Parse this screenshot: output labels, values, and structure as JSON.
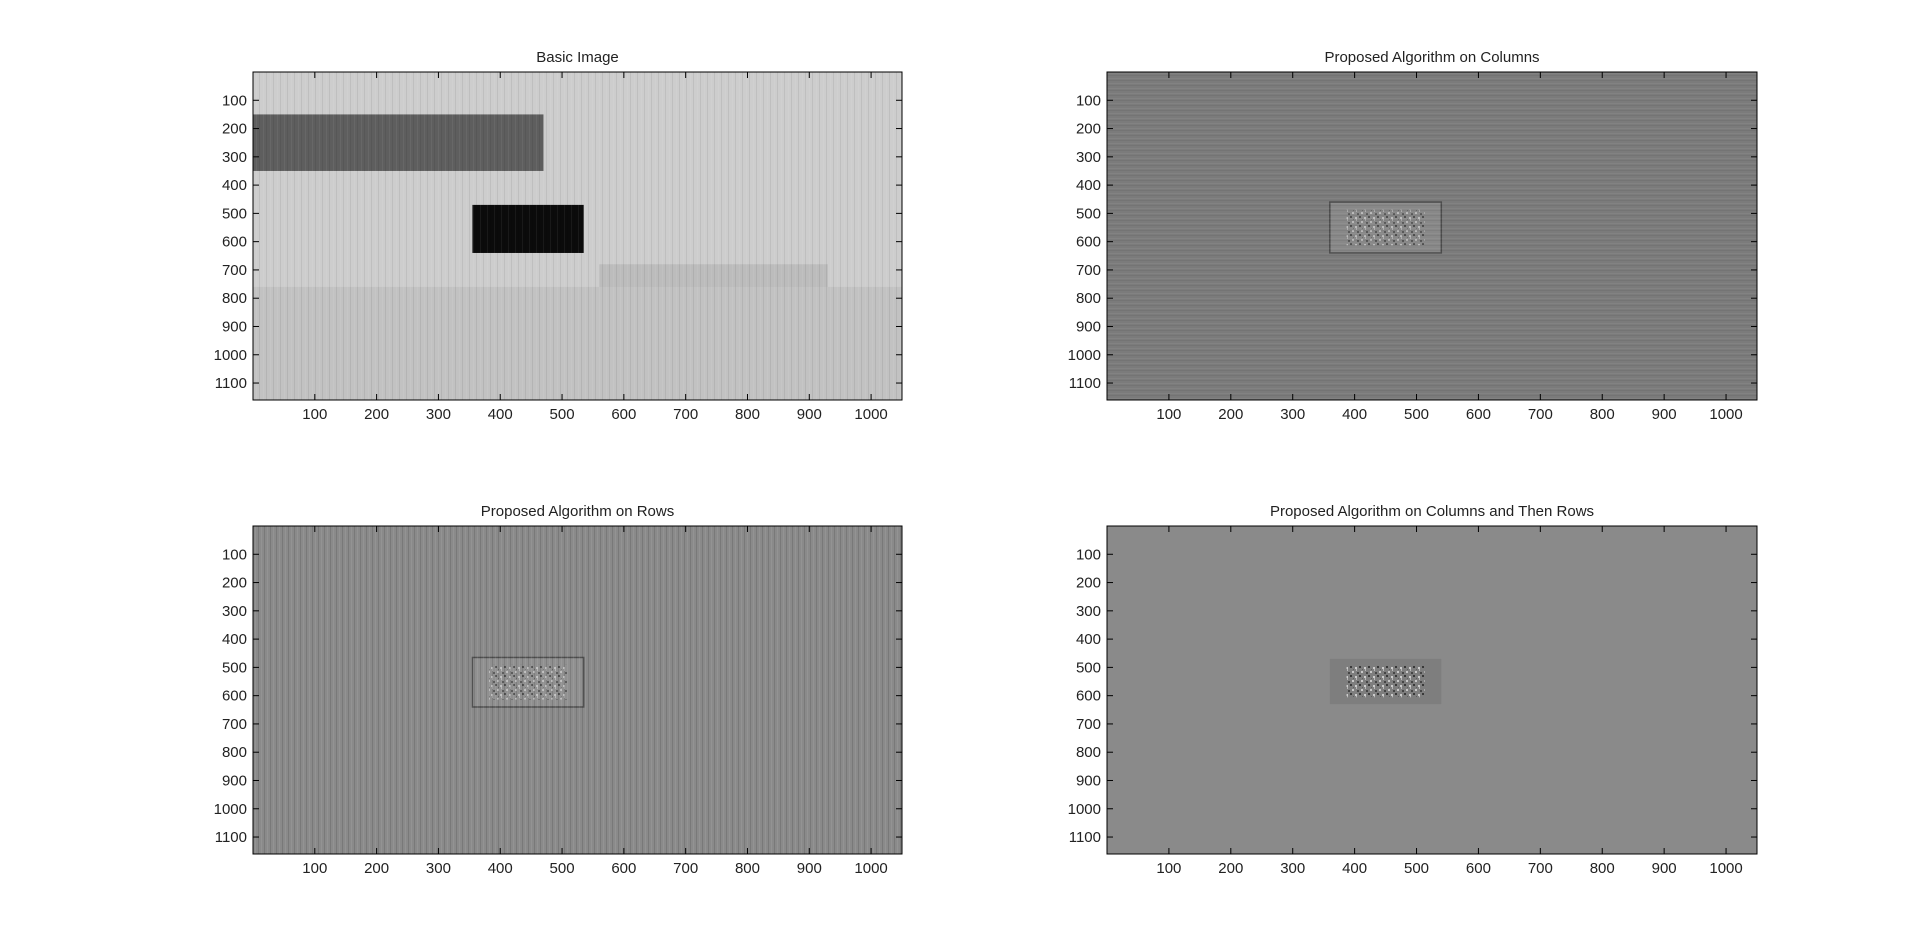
{
  "chart_data": [
    {
      "type": "heatmap",
      "title": "Basic Image",
      "xlabel": "",
      "ylabel": "",
      "xlim": [
        0,
        1050
      ],
      "ylim": [
        1160,
        0
      ],
      "x_ticks": [
        100,
        200,
        300,
        400,
        500,
        600,
        700,
        800,
        900,
        1000
      ],
      "y_ticks": [
        100,
        200,
        300,
        400,
        500,
        600,
        700,
        800,
        900,
        1000,
        1100
      ],
      "colormap": "gray",
      "background_gray": "#cdcdcd",
      "features": [
        {
          "name": "dark band",
          "x": [
            0,
            470
          ],
          "y": [
            150,
            350
          ],
          "gray": "#5e5e5e"
        },
        {
          "name": "black block",
          "x": [
            355,
            535
          ],
          "y": [
            470,
            640
          ],
          "gray": "#0b0b0b"
        },
        {
          "name": "gray rectangle",
          "x": [
            560,
            930
          ],
          "y": [
            680,
            940
          ],
          "gray": "#bcbcbc"
        },
        {
          "name": "lower band",
          "x": [
            0,
            1050
          ],
          "y": [
            760,
            1160
          ],
          "gray": "#c2c2c2"
        }
      ]
    },
    {
      "type": "heatmap",
      "title": "Proposed Algorithm on Columns",
      "xlabel": "",
      "ylabel": "",
      "xlim": [
        0,
        1050
      ],
      "ylim": [
        1160,
        0
      ],
      "x_ticks": [
        100,
        200,
        300,
        400,
        500,
        600,
        700,
        800,
        900,
        1000
      ],
      "y_ticks": [
        100,
        200,
        300,
        400,
        500,
        600,
        700,
        800,
        900,
        1000,
        1100
      ],
      "colormap": "gray",
      "background_gray": "#7b7b7b",
      "features": [
        {
          "name": "textured block",
          "x": [
            360,
            540
          ],
          "y": [
            460,
            640
          ],
          "gray": "#888888"
        }
      ]
    },
    {
      "type": "heatmap",
      "title": "Proposed Algorithm on Rows",
      "xlabel": "",
      "ylabel": "",
      "xlim": [
        0,
        1050
      ],
      "ylim": [
        1160,
        0
      ],
      "x_ticks": [
        100,
        200,
        300,
        400,
        500,
        600,
        700,
        800,
        900,
        1000
      ],
      "y_ticks": [
        100,
        200,
        300,
        400,
        500,
        600,
        700,
        800,
        900,
        1000,
        1100
      ],
      "colormap": "gray",
      "background_gray": "#8a8a8a",
      "features": [
        {
          "name": "textured block",
          "x": [
            355,
            535
          ],
          "y": [
            465,
            640
          ],
          "gray": "#909090"
        }
      ]
    },
    {
      "type": "heatmap",
      "title": "Proposed Algorithm on Columns and Then Rows",
      "xlabel": "",
      "ylabel": "",
      "xlim": [
        0,
        1050
      ],
      "ylim": [
        1160,
        0
      ],
      "x_ticks": [
        100,
        200,
        300,
        400,
        500,
        600,
        700,
        800,
        900,
        1000
      ],
      "y_ticks": [
        100,
        200,
        300,
        400,
        500,
        600,
        700,
        800,
        900,
        1000,
        1100
      ],
      "colormap": "gray",
      "background_gray": "#8a8a8a",
      "features": [
        {
          "name": "noise cluster",
          "x": [
            360,
            540
          ],
          "y": [
            470,
            630
          ],
          "gray": "#7e7e7e"
        }
      ]
    }
  ]
}
